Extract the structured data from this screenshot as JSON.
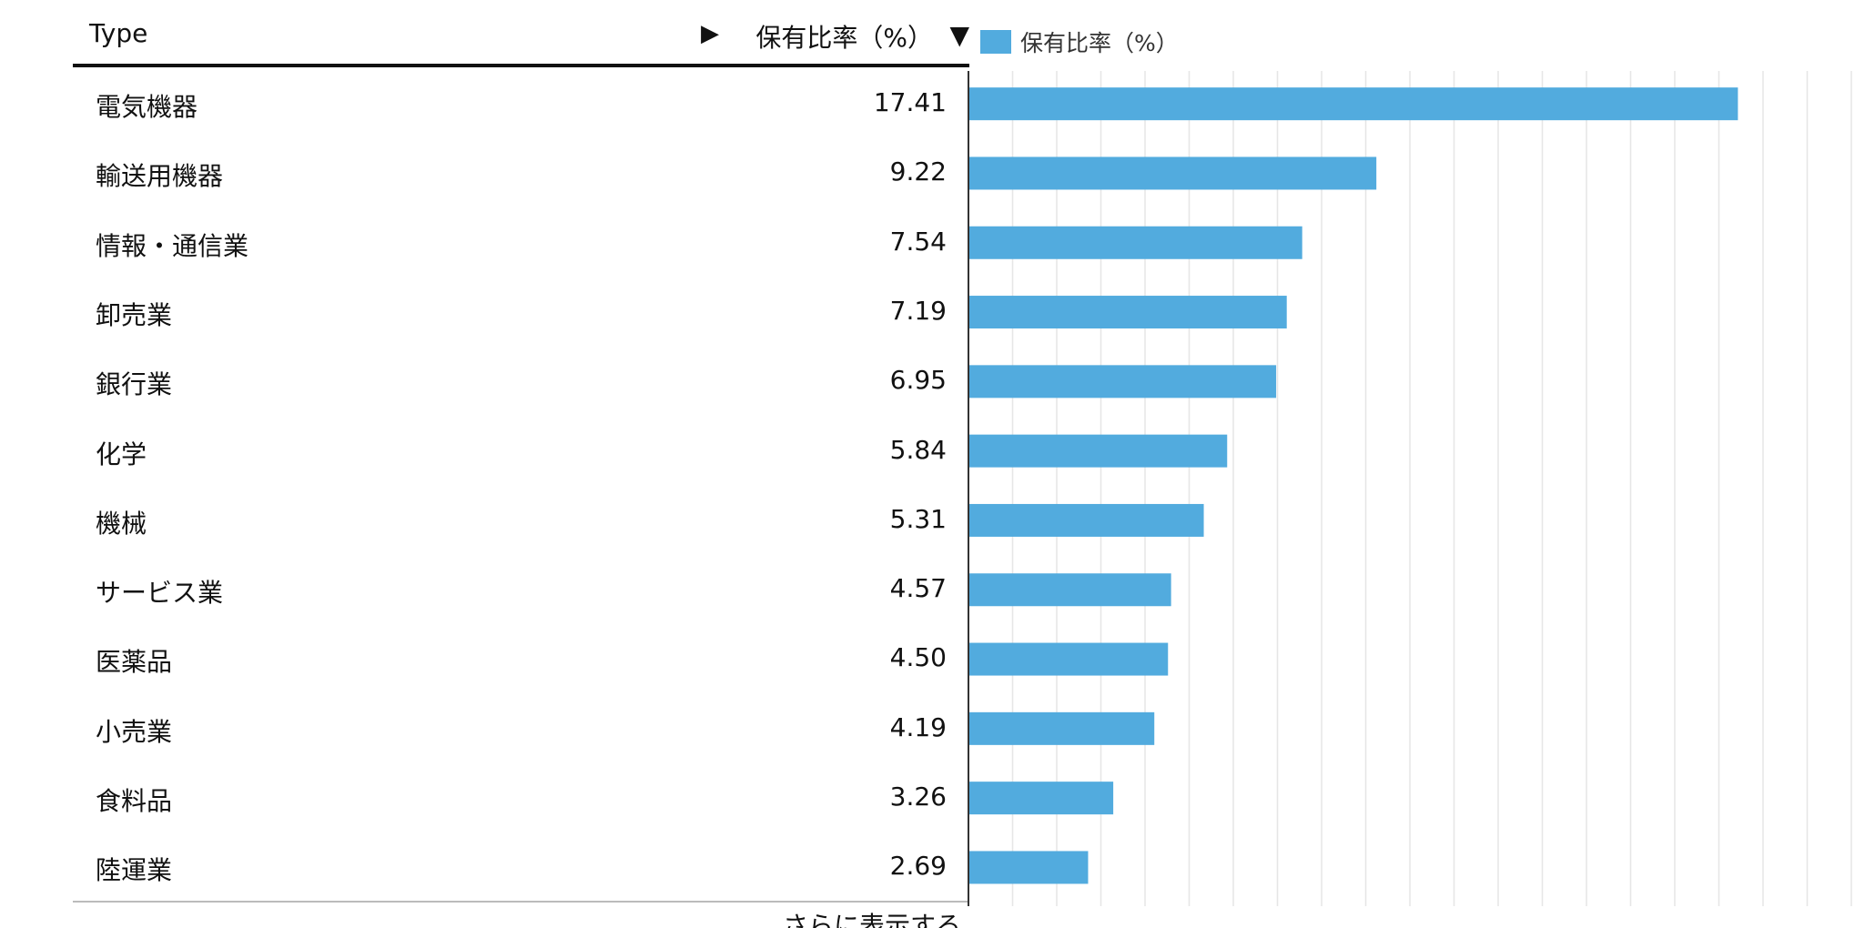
{
  "table": {
    "header_type": "Type",
    "header_value": "保有比率（%）",
    "expand_icon": "▶",
    "sort_icon": "▼",
    "show_more": "さらに表示する"
  },
  "colors": {
    "bar": "#52ABDE",
    "grid": "#e6e6e6",
    "axis": "#333333"
  },
  "chart_data": {
    "type": "bar",
    "orientation": "horizontal",
    "legend_position": "top-left",
    "grid": true,
    "xlim": [
      0,
      20
    ],
    "categories": [
      "電気機器",
      "輸送用機器",
      "情報・通信業",
      "卸売業",
      "銀行業",
      "化学",
      "機械",
      "サービス業",
      "医薬品",
      "小売業",
      "食料品",
      "陸運業"
    ],
    "series": [
      {
        "name": "保有比率（%）",
        "values": [
          17.41,
          9.22,
          7.54,
          7.19,
          6.95,
          5.84,
          5.31,
          4.57,
          4.5,
          4.19,
          3.26,
          2.69
        ]
      }
    ],
    "value_labels": [
      "17.41",
      "9.22",
      "7.54",
      "7.19",
      "6.95",
      "5.84",
      "5.31",
      "4.57",
      "4.50",
      "4.19",
      "3.26",
      "2.69"
    ]
  }
}
